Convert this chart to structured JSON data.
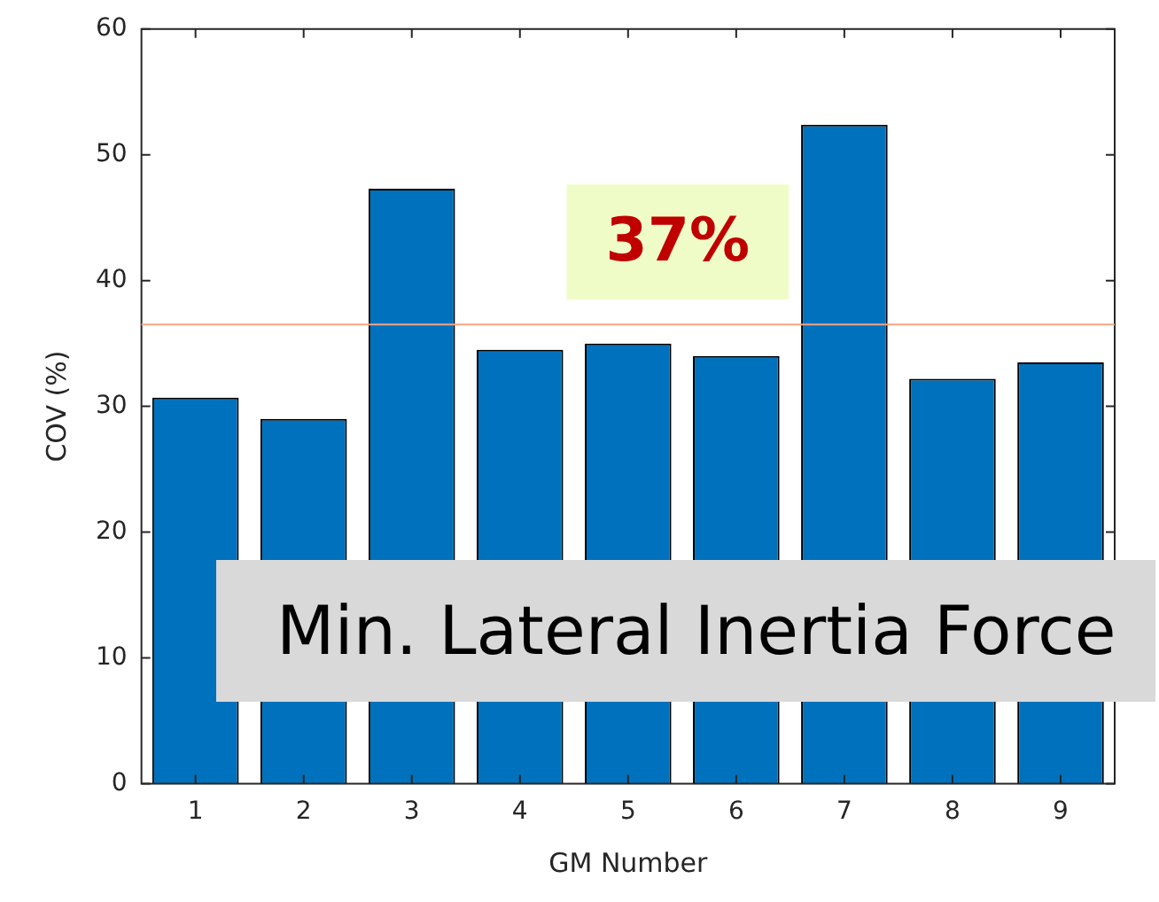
{
  "chart_data": {
    "type": "bar",
    "xlabel": "GM Number",
    "ylabel": "COV (%)",
    "categories": [
      "1",
      "2",
      "3",
      "4",
      "5",
      "6",
      "7",
      "8",
      "9"
    ],
    "values": [
      30.7,
      29.0,
      47.3,
      34.5,
      35.0,
      34.0,
      52.4,
      32.2,
      33.5
    ],
    "color": "#0072bd",
    "ylim": [
      0,
      60
    ],
    "yticks": [
      0,
      10,
      20,
      30,
      40,
      50,
      60
    ],
    "grid": false,
    "legend": false,
    "ref_lines": [
      {
        "axis": "y",
        "value": 36.5,
        "label": "37%",
        "color": "#f4a582"
      }
    ],
    "annotations": [
      "Min. Lateral Inertia Force"
    ]
  }
}
